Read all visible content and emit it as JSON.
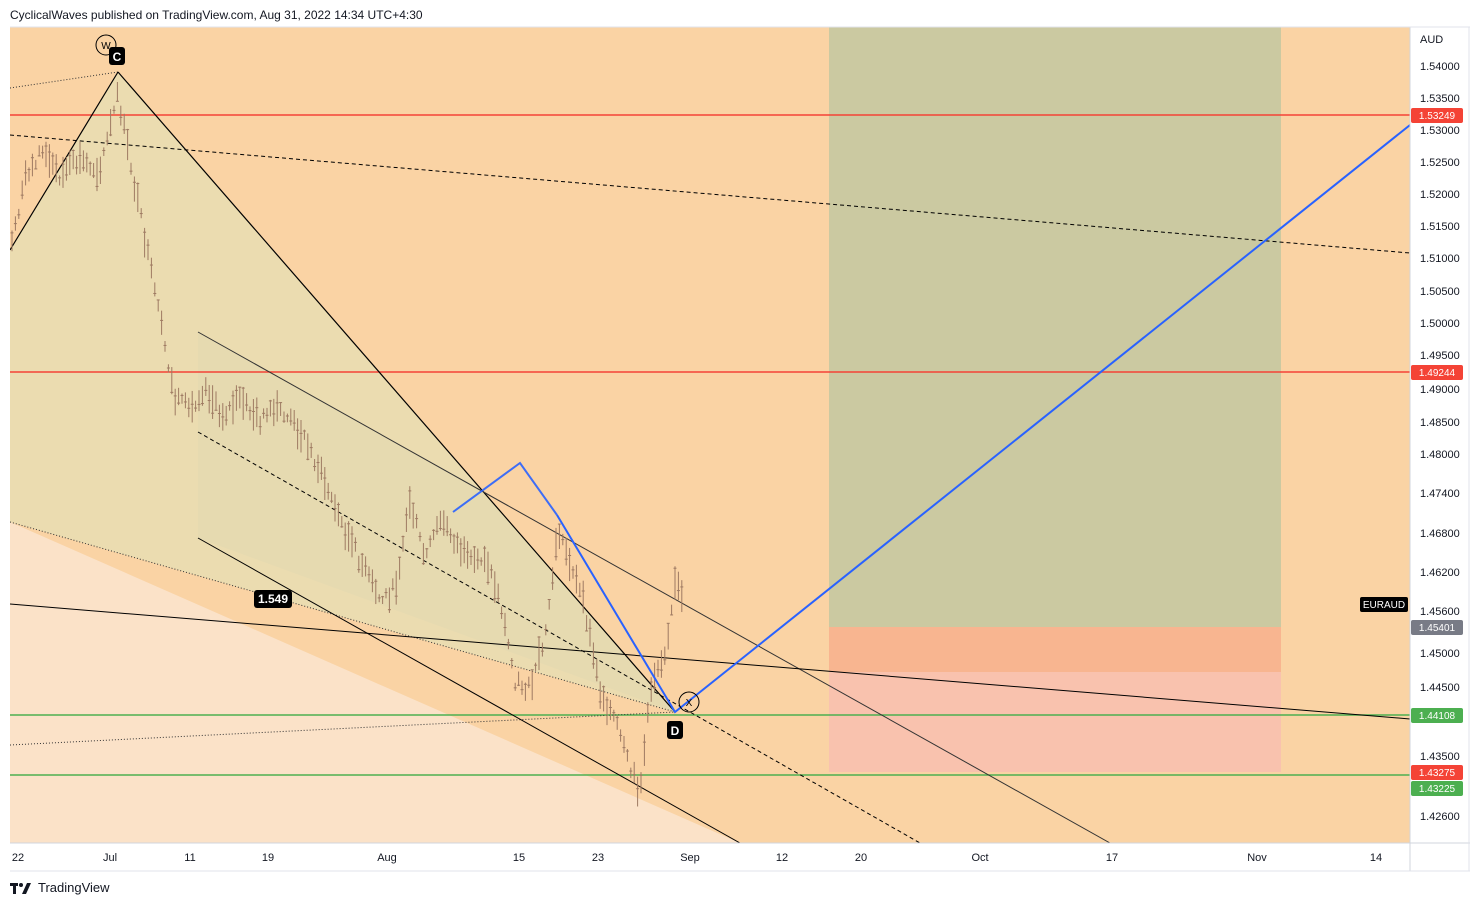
{
  "header": {
    "publish_line": "CyclicalWaves published on TradingView.com, Aug 31, 2022 14:34 UTC+4:30"
  },
  "footer": {
    "brand": "TradingView"
  },
  "colors": {
    "bg_band_outer": "#fad3a4",
    "bg_band_inner": "#fbe2c8",
    "wedge_fill": "#e8ddb3",
    "target_zone": "#cbc9a1",
    "stop_zone": "#fac3af",
    "red_level": "#f44336",
    "green_level": "#4caf50",
    "blue_path": "#2962ff",
    "candle": "#9e7a62"
  },
  "chart_data": {
    "type": "candlestick",
    "symbol": "EURAUD",
    "currency": "AUD",
    "x_ticks": [
      "22",
      "Jul",
      "11",
      "19",
      "Aug",
      "15",
      "23",
      "Sep",
      "12",
      "20",
      "Oct",
      "17",
      "Nov",
      "14"
    ],
    "y_ticks": [
      "1.54000",
      "1.53500",
      "1.53000",
      "1.52500",
      "1.52000",
      "1.51500",
      "1.51000",
      "1.50500",
      "1.50000",
      "1.49500",
      "1.49000",
      "1.48500",
      "1.48000",
      "1.47400",
      "1.46800",
      "1.46200",
      "1.45600",
      "1.45000",
      "1.44500",
      "1.43500",
      "1.42600"
    ],
    "ylim": [
      1.422,
      1.5455
    ],
    "price_levels": [
      {
        "label": "1.53249",
        "color": "red",
        "kind": "resistance"
      },
      {
        "label": "1.49244",
        "color": "red",
        "kind": "resistance"
      },
      {
        "label": "1.45401",
        "color": "gray",
        "kind": "last-price"
      },
      {
        "label": "1.44108",
        "color": "green",
        "kind": "support"
      },
      {
        "label": "1.43275",
        "color": "red",
        "kind": "stop"
      },
      {
        "label": "1.43225",
        "color": "green",
        "kind": "support"
      }
    ],
    "annotations": [
      {
        "text": "C",
        "kind": "wave-label"
      },
      {
        "text": "W",
        "kind": "circled-wave"
      },
      {
        "text": "D",
        "kind": "wave-label"
      },
      {
        "text": "X",
        "kind": "circled-wave"
      },
      {
        "text": "1.549",
        "kind": "ratio-label"
      }
    ]
  },
  "price_axis": {
    "currency": "AUD",
    "symbol_tag": "EURAUD"
  }
}
